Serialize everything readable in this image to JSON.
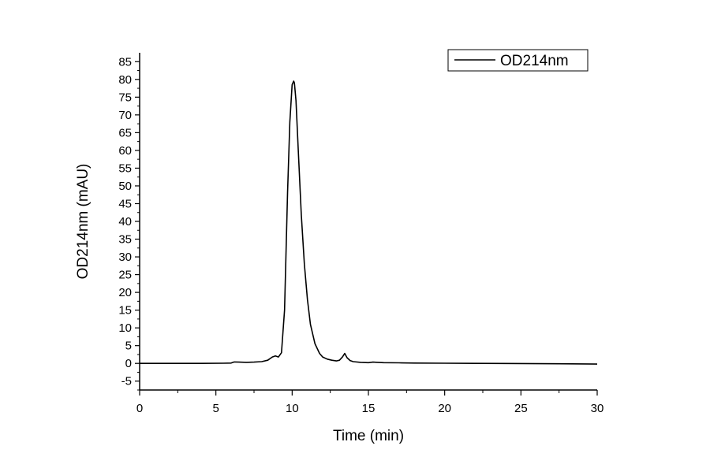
{
  "chart_data": {
    "type": "line",
    "title": "",
    "xlabel": "Time (min)",
    "ylabel": "OD214nm (mAU)",
    "xlim": [
      0,
      30
    ],
    "ylim": [
      -7.5,
      87.5
    ],
    "x_ticks": [
      0,
      5,
      10,
      15,
      20,
      25,
      30
    ],
    "y_ticks": [
      -5,
      0,
      5,
      10,
      15,
      20,
      25,
      30,
      35,
      40,
      45,
      50,
      55,
      60,
      65,
      70,
      75,
      80,
      85
    ],
    "grid": false,
    "legend": {
      "position": "top-right"
    },
    "series": [
      {
        "name": "OD214nm",
        "color": "#000000",
        "x": [
          0,
          2,
          4,
          5.5,
          6.0,
          6.2,
          6.5,
          7.0,
          7.5,
          8.0,
          8.4,
          8.7,
          8.9,
          9.1,
          9.3,
          9.5,
          9.7,
          9.85,
          10.0,
          10.1,
          10.15,
          10.25,
          10.4,
          10.6,
          10.8,
          11.0,
          11.2,
          11.5,
          11.8,
          12.0,
          12.3,
          12.6,
          12.9,
          13.1,
          13.3,
          13.45,
          13.6,
          13.8,
          14.0,
          14.5,
          15.0,
          15.3,
          15.6,
          16.0,
          17.0,
          18.0,
          20.0,
          22.0,
          25.0,
          27.5,
          30.0
        ],
        "y": [
          0.0,
          0.0,
          0.0,
          0.05,
          0.1,
          0.4,
          0.35,
          0.3,
          0.35,
          0.5,
          0.9,
          1.8,
          2.1,
          1.8,
          3.0,
          15.0,
          48.0,
          68.0,
          78.5,
          79.5,
          79.0,
          74.0,
          60.0,
          42.0,
          28.0,
          18.0,
          11.0,
          5.5,
          2.8,
          1.8,
          1.2,
          0.9,
          0.7,
          0.9,
          1.8,
          2.8,
          1.6,
          0.8,
          0.5,
          0.3,
          0.2,
          0.35,
          0.3,
          0.2,
          0.15,
          0.1,
          0.05,
          0.0,
          -0.05,
          -0.1,
          -0.2
        ]
      }
    ]
  }
}
